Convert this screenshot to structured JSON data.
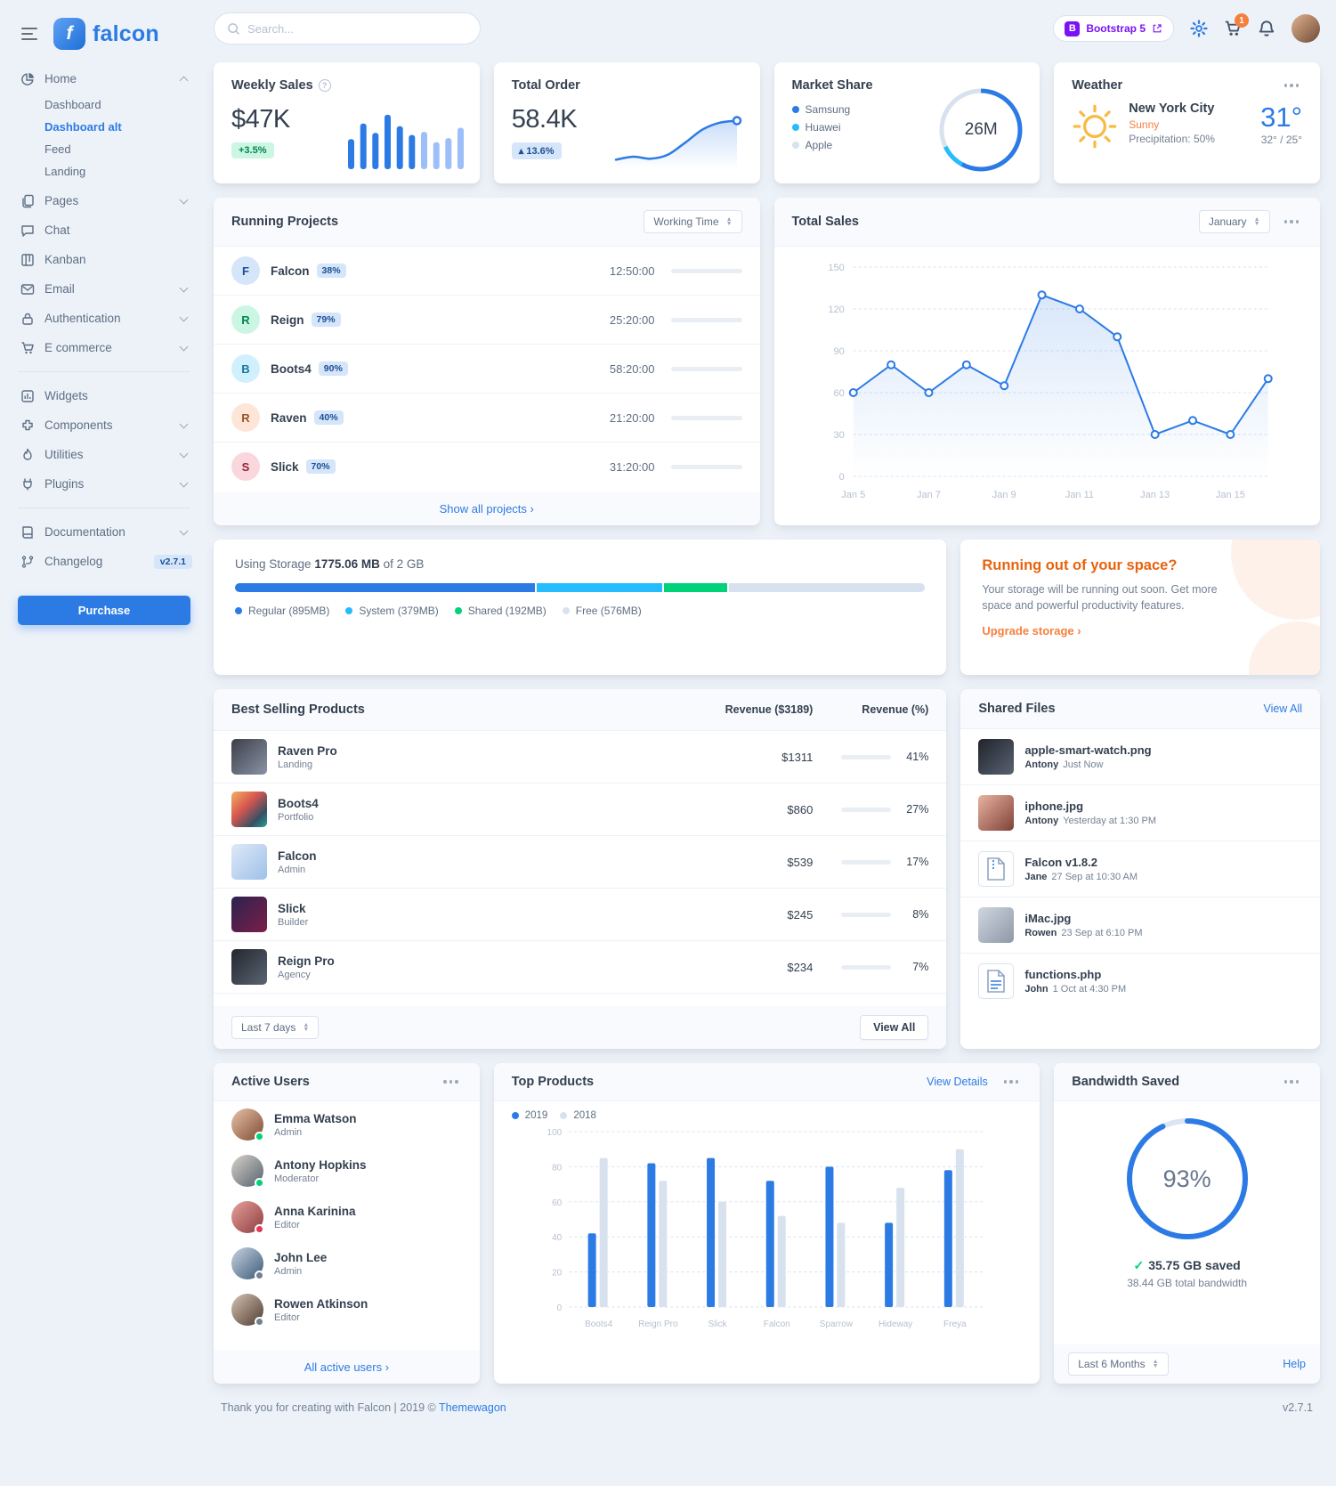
{
  "brand": {
    "name": "falcon"
  },
  "topbar": {
    "search_placeholder": "Search...",
    "bootstrap_label": "Bootstrap 5",
    "cart_badge": "1"
  },
  "sidebar": {
    "home": {
      "label": "Home"
    },
    "home_children": [
      {
        "label": "Dashboard"
      },
      {
        "label": "Dashboard alt"
      },
      {
        "label": "Feed"
      },
      {
        "label": "Landing"
      }
    ],
    "group1": [
      {
        "label": "Pages"
      },
      {
        "label": "Chat"
      },
      {
        "label": "Kanban"
      },
      {
        "label": "Email"
      },
      {
        "label": "Authentication"
      },
      {
        "label": "E commerce"
      }
    ],
    "group2": [
      {
        "label": "Widgets"
      },
      {
        "label": "Components"
      },
      {
        "label": "Utilities"
      },
      {
        "label": "Plugins"
      }
    ],
    "group3": [
      {
        "label": "Documentation"
      },
      {
        "label": "Changelog",
        "badge": "v2.7.1"
      }
    ],
    "purchase": "Purchase"
  },
  "weekly_sales": {
    "title": "Weekly Sales",
    "value": "$47K",
    "badge": "+3.5%"
  },
  "total_order": {
    "title": "Total Order",
    "value": "58.4K",
    "badge": "13.6%"
  },
  "market_share": {
    "title": "Market Share",
    "center": "26M",
    "legend": [
      {
        "label": "Samsung",
        "color": "#2c7be5"
      },
      {
        "label": "Huawei",
        "color": "#27bcfd"
      },
      {
        "label": "Apple",
        "color": "#d8e2ef"
      }
    ]
  },
  "weather": {
    "title": "Weather",
    "city": "New York City",
    "condition": "Sunny",
    "precipitation": "Precipitation: 50%",
    "temp_big": "31°",
    "temp_range": "32° / 25°"
  },
  "running_projects": {
    "title": "Running Projects",
    "filter": "Working Time",
    "footer_link": "Show all projects ›",
    "rows": [
      {
        "initial": "F",
        "name": "Falcon",
        "pct": "38%",
        "time": "12:50:00",
        "progress": 38,
        "avatar_bg": "#d5e5fa",
        "avatar_color": "#1c4f93"
      },
      {
        "initial": "R",
        "name": "Reign",
        "pct": "79%",
        "time": "25:20:00",
        "progress": 79,
        "avatar_bg": "#ccf6e4",
        "avatar_color": "#00864e"
      },
      {
        "initial": "B",
        "name": "Boots4",
        "pct": "90%",
        "time": "58:20:00",
        "progress": 90,
        "avatar_bg": "#d0f0fd",
        "avatar_color": "#1978a2"
      },
      {
        "initial": "R",
        "name": "Raven",
        "pct": "40%",
        "time": "21:20:00",
        "progress": 40,
        "avatar_bg": "#fde6d8",
        "avatar_color": "#9d5228"
      },
      {
        "initial": "S",
        "name": "Slick",
        "pct": "70%",
        "time": "31:20:00",
        "progress": 70,
        "avatar_bg": "#fad7dd",
        "avatar_color": "#932338"
      }
    ]
  },
  "total_sales": {
    "title": "Total Sales",
    "filter": "January"
  },
  "storage": {
    "label": "Using Storage",
    "used": "1775.06 MB",
    "total": "of 2 GB",
    "segments": [
      {
        "label": "Regular (895MB)",
        "pct": 43.7,
        "color": "#2c7be5"
      },
      {
        "label": "System (379MB)",
        "pct": 18.5,
        "color": "#27bcfd"
      },
      {
        "label": "Shared (192MB)",
        "pct": 9.4,
        "color": "#00d27a"
      },
      {
        "label": "Free (576MB)",
        "pct": 28.4,
        "color": "#d8e2ef"
      }
    ]
  },
  "space": {
    "title": "Running out of your space?",
    "body": "Your storage will be running out soon. Get more space and powerful productivity features.",
    "link": "Upgrade storage ›"
  },
  "best_selling": {
    "title": "Best Selling Products",
    "col_revenue": "Revenue ($3189)",
    "col_pct": "Revenue (%)",
    "filter": "Last 7 days",
    "view_all": "View All",
    "rows": [
      {
        "name": "Raven Pro",
        "category": "Landing",
        "revenue": "$1311",
        "pct": "41%",
        "progress": 41
      },
      {
        "name": "Boots4",
        "category": "Portfolio",
        "revenue": "$860",
        "pct": "27%",
        "progress": 27
      },
      {
        "name": "Falcon",
        "category": "Admin",
        "revenue": "$539",
        "pct": "17%",
        "progress": 17
      },
      {
        "name": "Slick",
        "category": "Builder",
        "revenue": "$245",
        "pct": "8%",
        "progress": 8
      },
      {
        "name": "Reign Pro",
        "category": "Agency",
        "revenue": "$234",
        "pct": "7%",
        "progress": 7
      }
    ]
  },
  "shared_files": {
    "title": "Shared Files",
    "view_all": "View All",
    "files": [
      {
        "name": "apple-smart-watch.png",
        "user": "Antony",
        "time": "Just Now"
      },
      {
        "name": "iphone.jpg",
        "user": "Antony",
        "time": "Yesterday at 1:30 PM"
      },
      {
        "name": "Falcon v1.8.2",
        "user": "Jane",
        "time": "27 Sep at 10:30 AM"
      },
      {
        "name": "iMac.jpg",
        "user": "Rowen",
        "time": "23 Sep at 6:10 PM"
      },
      {
        "name": "functions.php",
        "user": "John",
        "time": "1 Oct at 4:30 PM"
      }
    ]
  },
  "active_users": {
    "title": "Active Users",
    "footer_link": "All active users ›",
    "users": [
      {
        "name": "Emma Watson",
        "role": "Admin",
        "status": "#00d27a"
      },
      {
        "name": "Antony Hopkins",
        "role": "Moderator",
        "status": "#00d27a"
      },
      {
        "name": "Anna Karinina",
        "role": "Editor",
        "status": "#e63757"
      },
      {
        "name": "John Lee",
        "role": "Admin",
        "status": "#748194"
      },
      {
        "name": "Rowen Atkinson",
        "role": "Editor",
        "status": "#748194"
      }
    ]
  },
  "top_products": {
    "title": "Top Products",
    "link": "View Details",
    "legend": [
      {
        "label": "2019",
        "color": "#2c7be5"
      },
      {
        "label": "2018",
        "color": "#d8e2ef"
      }
    ]
  },
  "bandwidth": {
    "title": "Bandwidth Saved",
    "pct": "93%",
    "saved": "35.75 GB saved",
    "total": "38.44 GB total bandwidth",
    "filter": "Last 6 Months",
    "help": "Help"
  },
  "footer": {
    "left_prefix": "Thank you for creating with Falcon | 2019 © ",
    "brand": "Themewagon",
    "version": "v2.7.1"
  },
  "chart_data": {
    "weekly_sales_bars": {
      "type": "bar",
      "values": [
        58,
        88,
        70,
        105,
        83,
        66,
        72,
        52,
        60,
        80
      ],
      "max": 110,
      "colors": [
        "#2c7be5",
        "#2c7be5",
        "#2c7be5",
        "#2c7be5",
        "#2c7be5",
        "#2c7be5",
        "#9dbff9",
        "#9dbff9",
        "#9dbff9",
        "#9dbff9"
      ]
    },
    "total_order_line": {
      "type": "line",
      "values": [
        25,
        28,
        26,
        30,
        42,
        55,
        62,
        64
      ],
      "color": "#2c7be5"
    },
    "market_share_donut": {
      "type": "pie",
      "labels": [
        "Samsung",
        "Huawei",
        "Apple"
      ],
      "values": [
        58,
        10,
        32
      ],
      "colors": [
        "#2c7be5",
        "#27bcfd",
        "#d8e2ef"
      ],
      "total_label": "26M"
    },
    "total_sales_line": {
      "type": "line",
      "x": [
        "Jan 5",
        "Jan 6",
        "Jan 7",
        "Jan 8",
        "Jan 9",
        "Jan 10",
        "Jan 11",
        "Jan 12",
        "Jan 13",
        "Jan 14",
        "Jan 15",
        "Jan 16"
      ],
      "x_labels": [
        "Jan 5",
        "Jan 7",
        "Jan 9",
        "Jan 11",
        "Jan 13",
        "Jan 15"
      ],
      "values": [
        60,
        80,
        60,
        80,
        65,
        130,
        120,
        100,
        30,
        40,
        30,
        70
      ],
      "ylim": [
        0,
        150
      ],
      "yticks": [
        0,
        30,
        60,
        90,
        120,
        150
      ],
      "color": "#2c7be5"
    },
    "top_products_bars": {
      "type": "bar",
      "categories": [
        "Boots4",
        "Reign Pro",
        "Slick",
        "Falcon",
        "Sparrow",
        "Hideway",
        "Freya"
      ],
      "series": [
        {
          "name": "2019",
          "color": "#2c7be5",
          "values": [
            42,
            82,
            85,
            72,
            80,
            48,
            78
          ]
        },
        {
          "name": "2018",
          "color": "#d8e2ef",
          "values": [
            85,
            72,
            60,
            52,
            48,
            68,
            90
          ]
        }
      ],
      "ylim": [
        0,
        100
      ],
      "yticks": [
        0,
        20,
        40,
        60,
        80,
        100
      ]
    },
    "bandwidth_donut": {
      "type": "donut",
      "value": 93,
      "color": "#2c7be5",
      "track": "#dce5f3"
    }
  }
}
